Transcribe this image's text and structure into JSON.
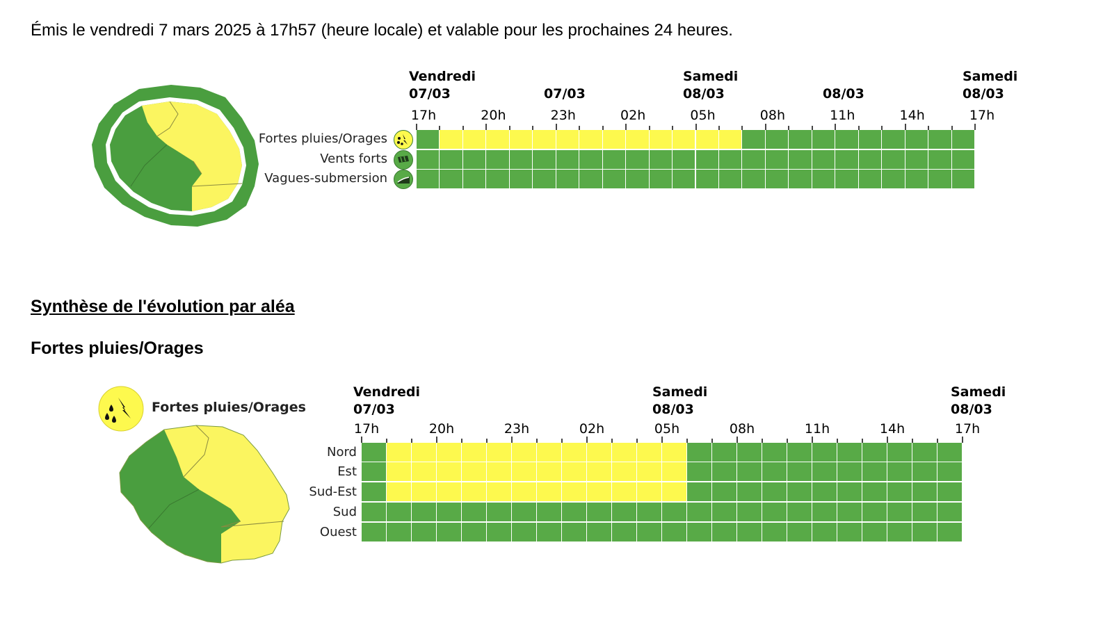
{
  "issued_text": "Émis le vendredi 7 mars 2025 à 17h57 (heure locale) et valable pour les prochaines 24 heures.",
  "section_title": "Synthèse de l'évolution par aléa",
  "hazard_title": "Fortes pluies/Orages",
  "colors": {
    "green": "#58aa47",
    "yellow": "#fdf94e",
    "map_green": "#4a9e3f",
    "map_yellow": "#fbf560"
  },
  "timeline1": {
    "days": [
      {
        "top": "Vendredi",
        "bottom": "07/03"
      },
      {
        "top": "",
        "bottom": "07/03"
      },
      {
        "top": "Samedi",
        "bottom": "08/03"
      },
      {
        "top": "",
        "bottom": "08/03"
      },
      {
        "top": "Samedi",
        "bottom": "08/03"
      }
    ],
    "hours": [
      "17h",
      "20h",
      "23h",
      "02h",
      "05h",
      "08h",
      "11h",
      "14h",
      "17h"
    ],
    "rows": [
      {
        "label": "Fortes pluies/Orages",
        "icon": "rain-storm-icon",
        "icon_level": "yellow",
        "cells": [
          "g",
          "y",
          "y",
          "y",
          "y",
          "y",
          "y",
          "y",
          "y",
          "y",
          "y",
          "y",
          "y",
          "y",
          "g",
          "g",
          "g",
          "g",
          "g",
          "g",
          "g",
          "g",
          "g",
          "g"
        ]
      },
      {
        "label": "Vents forts",
        "icon": "wind-icon",
        "icon_level": "green",
        "cells": [
          "g",
          "g",
          "g",
          "g",
          "g",
          "g",
          "g",
          "g",
          "g",
          "g",
          "g",
          "g",
          "g",
          "g",
          "g",
          "g",
          "g",
          "g",
          "g",
          "g",
          "g",
          "g",
          "g",
          "g"
        ]
      },
      {
        "label": "Vagues-submersion",
        "icon": "waves-icon",
        "icon_level": "green",
        "cells": [
          "g",
          "g",
          "g",
          "g",
          "g",
          "g",
          "g",
          "g",
          "g",
          "g",
          "g",
          "g",
          "g",
          "g",
          "g",
          "g",
          "g",
          "g",
          "g",
          "g",
          "g",
          "g",
          "g",
          "g"
        ]
      }
    ]
  },
  "timeline2": {
    "legend_label": "Fortes pluies/Orages",
    "legend_icon": "rain-storm-icon",
    "days": [
      {
        "top": "Vendredi",
        "bottom": "07/03"
      },
      {
        "top": "Samedi",
        "bottom": "08/03"
      },
      {
        "top": "Samedi",
        "bottom": "08/03"
      }
    ],
    "hours": [
      "17h",
      "20h",
      "23h",
      "02h",
      "05h",
      "08h",
      "11h",
      "14h",
      "17h"
    ],
    "rows": [
      {
        "label": "Nord",
        "cells": [
          "g",
          "y",
          "y",
          "y",
          "y",
          "y",
          "y",
          "y",
          "y",
          "y",
          "y",
          "y",
          "y",
          "g",
          "g",
          "g",
          "g",
          "g",
          "g",
          "g",
          "g",
          "g",
          "g",
          "g"
        ]
      },
      {
        "label": "Est",
        "cells": [
          "g",
          "y",
          "y",
          "y",
          "y",
          "y",
          "y",
          "y",
          "y",
          "y",
          "y",
          "y",
          "y",
          "g",
          "g",
          "g",
          "g",
          "g",
          "g",
          "g",
          "g",
          "g",
          "g",
          "g"
        ]
      },
      {
        "label": "Sud-Est",
        "cells": [
          "g",
          "y",
          "y",
          "y",
          "y",
          "y",
          "y",
          "y",
          "y",
          "y",
          "y",
          "y",
          "y",
          "g",
          "g",
          "g",
          "g",
          "g",
          "g",
          "g",
          "g",
          "g",
          "g",
          "g"
        ]
      },
      {
        "label": "Sud",
        "cells": [
          "g",
          "g",
          "g",
          "g",
          "g",
          "g",
          "g",
          "g",
          "g",
          "g",
          "g",
          "g",
          "g",
          "g",
          "g",
          "g",
          "g",
          "g",
          "g",
          "g",
          "g",
          "g",
          "g",
          "g"
        ]
      },
      {
        "label": "Ouest",
        "cells": [
          "g",
          "g",
          "g",
          "g",
          "g",
          "g",
          "g",
          "g",
          "g",
          "g",
          "g",
          "g",
          "g",
          "g",
          "g",
          "g",
          "g",
          "g",
          "g",
          "g",
          "g",
          "g",
          "g",
          "g"
        ]
      }
    ]
  }
}
